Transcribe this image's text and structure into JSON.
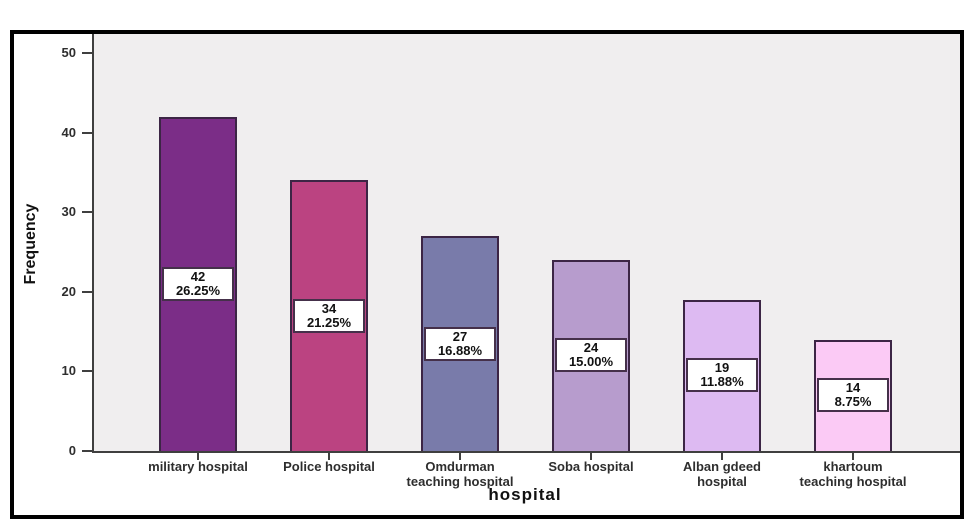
{
  "chart_data": {
    "type": "bar",
    "title": "",
    "xlabel": "hospital",
    "ylabel": "Frequency",
    "ylim": [
      0,
      52.4
    ],
    "y_ticks": [
      0,
      10,
      20,
      30,
      40,
      50
    ],
    "grid": false,
    "legend": null,
    "categories": [
      "military hospital",
      "Police hospital",
      "Omdurman teaching hospital",
      "Soba hospital",
      "Alban gdeed hospital",
      "khartoum teaching hospital"
    ],
    "category_label_lines": [
      [
        "military hospital"
      ],
      [
        "Police hospital"
      ],
      [
        "Omdurman",
        "teaching hospital"
      ],
      [
        "Soba hospital"
      ],
      [
        "Alban gdeed",
        "hospital"
      ],
      [
        "khartoum",
        "teaching hospital"
      ]
    ],
    "values": [
      42,
      34,
      27,
      24,
      19,
      14
    ],
    "percent_labels": [
      "26.25%",
      "21.25%",
      "16.88%",
      "15.00%",
      "11.88%",
      "8.75%"
    ],
    "bar_colors": [
      "#7b2d87",
      "#bb4381",
      "#797baa",
      "#b79ccd",
      "#ddbaf2",
      "#fbcaf5"
    ],
    "bar_border_color": "#3c2545",
    "plot_background": "#f0eeef",
    "axis_color": "#3f3f3f",
    "frame_color": "#000000"
  }
}
